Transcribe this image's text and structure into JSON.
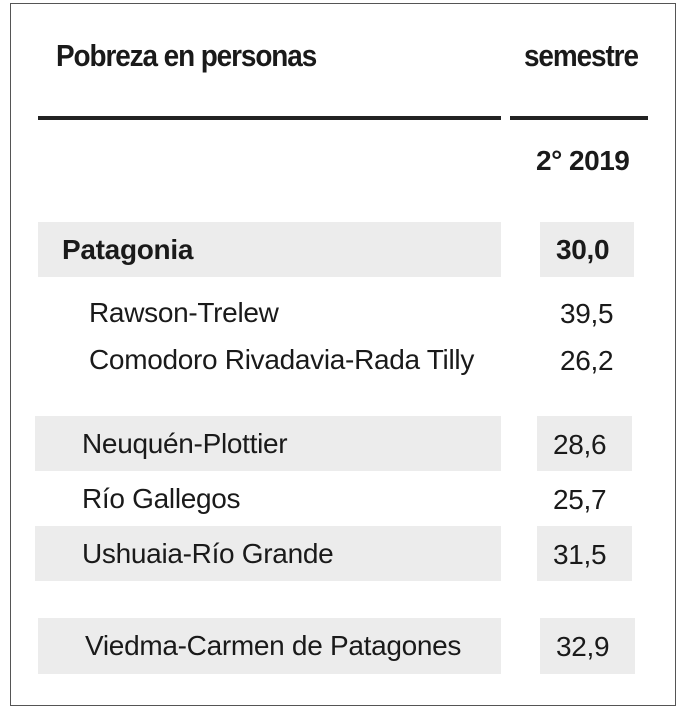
{
  "header": {
    "title": "Pobreza en personas",
    "column_group": "semestres"
  },
  "column": {
    "period_label": "2° 2019"
  },
  "rows": [
    {
      "label": "Patagonia",
      "value": "30,0"
    },
    {
      "label": "Rawson-Trelew",
      "value": "39,5"
    },
    {
      "label": "Comodoro Rivadavia-Rada Tilly",
      "value": "26,2"
    },
    {
      "label": "Neuquén-Plottier",
      "value": "28,6"
    },
    {
      "label": "Río Gallegos",
      "value": "25,7"
    },
    {
      "label": "Ushuaia-Río Grande",
      "value": "31,5"
    },
    {
      "label": "Viedma-Carmen de Patagones",
      "value": "32,9"
    }
  ]
}
